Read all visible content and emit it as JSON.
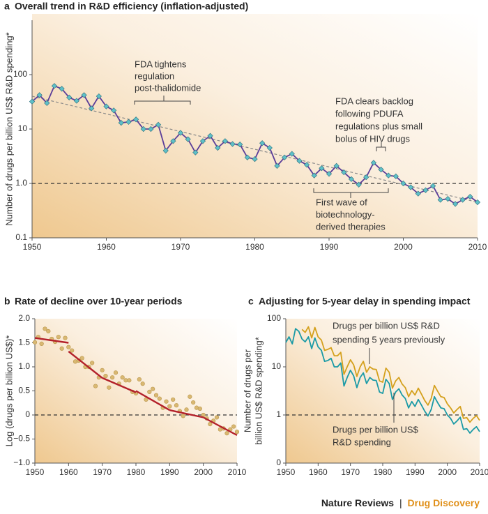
{
  "chart_data": [
    {
      "type": "line",
      "label": "a",
      "title": "Overall trend in R&D efficiency (inflation-adjusted)",
      "y_label": [
        "Number of drugs per billion US$ R&D spending*"
      ],
      "log_scale": true,
      "xlim": [
        1950,
        2010
      ],
      "xticks": [
        1950,
        1960,
        1970,
        1980,
        1990,
        2000,
        2010
      ],
      "ylim": [
        0.1,
        1000
      ],
      "yticks": [
        0.1,
        {
          "value": 1,
          "label": "1.0"
        },
        10,
        100
      ],
      "reference_line": 1,
      "trend": {
        "x": [
          1950,
          2010
        ],
        "values": [
          40,
          0.45
        ]
      },
      "x": [
        1950,
        1951,
        1952,
        1953,
        1954,
        1955,
        1956,
        1957,
        1958,
        1959,
        1960,
        1961,
        1962,
        1963,
        1964,
        1965,
        1966,
        1967,
        1968,
        1969,
        1970,
        1971,
        1972,
        1973,
        1974,
        1975,
        1976,
        1977,
        1978,
        1979,
        1980,
        1981,
        1982,
        1983,
        1984,
        1985,
        1986,
        1987,
        1988,
        1989,
        1990,
        1991,
        1992,
        1993,
        1994,
        1995,
        1996,
        1997,
        1998,
        1999,
        2000,
        2001,
        2002,
        2003,
        2004,
        2005,
        2006,
        2007,
        2008,
        2009,
        2010
      ],
      "series": [
        {
          "color": "#5a3d99",
          "marker_color": "#5fc0c8",
          "values": [
            32,
            42,
            30,
            62,
            55,
            38,
            33,
            42,
            24,
            40,
            26,
            22,
            13,
            13.5,
            15,
            10,
            10,
            12,
            4,
            6,
            8.5,
            6.5,
            3.7,
            6,
            7.5,
            4.5,
            6,
            5.3,
            5.2,
            3,
            2.8,
            5.5,
            4.5,
            2.1,
            3,
            3.5,
            2.6,
            2.2,
            1.4,
            1.9,
            1.5,
            2.1,
            1.6,
            1.2,
            0.95,
            1.3,
            2.4,
            1.8,
            1.4,
            1.35,
            1.0,
            0.85,
            0.65,
            0.75,
            0.9,
            0.5,
            0.52,
            0.42,
            0.5,
            0.57,
            0.45
          ]
        }
      ],
      "annotations": [
        {
          "lines": [
            "FDA tightens",
            "regulation",
            "post-thalidomide"
          ]
        },
        {
          "lines": [
            "FDA clears backlog",
            "following PDUFA",
            "regulations plus small",
            "bolus of HIV drugs"
          ]
        },
        {
          "lines": [
            "First wave of",
            "biotechnology-",
            "derived therapies"
          ]
        }
      ]
    },
    {
      "type": "scatter",
      "label": "b",
      "title": "Rate of decline over 10-year periods",
      "y_label": [
        "Log (drugs per billion US$)*"
      ],
      "xlim": [
        1950,
        2010
      ],
      "xticks": [
        1950,
        1960,
        1970,
        1980,
        1990,
        2000,
        2010
      ],
      "ylim": [
        -1,
        2
      ],
      "yticks": [
        {
          "value": 2,
          "label": "2.0"
        },
        1.5,
        {
          "value": 1,
          "label": "1.0"
        },
        0.5,
        0,
        {
          "value": -0.5,
          "label": "−0.5"
        },
        {
          "value": -1,
          "label": "−1.0"
        }
      ],
      "reference_line": 0,
      "color": "#d9b872",
      "segment_color": "#b3202a",
      "x": [
        1950,
        1951,
        1952,
        1953,
        1954,
        1955,
        1956,
        1957,
        1958,
        1959,
        1960,
        1961,
        1962,
        1963,
        1964,
        1965,
        1966,
        1967,
        1968,
        1969,
        1970,
        1971,
        1972,
        1973,
        1974,
        1975,
        1976,
        1977,
        1978,
        1979,
        1980,
        1981,
        1982,
        1983,
        1984,
        1985,
        1986,
        1987,
        1988,
        1989,
        1990,
        1991,
        1992,
        1993,
        1994,
        1995,
        1996,
        1997,
        1998,
        1999,
        2000,
        2001,
        2002,
        2003,
        2004,
        2005,
        2006,
        2007,
        2008,
        2009,
        2010
      ],
      "values": [
        1.51,
        1.62,
        1.48,
        1.79,
        1.74,
        1.58,
        1.52,
        1.62,
        1.38,
        1.6,
        1.41,
        1.34,
        1.11,
        1.13,
        1.18,
        1.0,
        1.0,
        1.08,
        0.6,
        0.78,
        0.93,
        0.81,
        0.57,
        0.78,
        0.88,
        0.65,
        0.78,
        0.72,
        0.72,
        0.48,
        0.45,
        0.74,
        0.65,
        0.32,
        0.48,
        0.54,
        0.41,
        0.34,
        0.15,
        0.28,
        0.18,
        0.32,
        0.2,
        0.08,
        -0.02,
        0.11,
        0.38,
        0.26,
        0.15,
        0.13,
        0,
        -0.07,
        -0.19,
        -0.12,
        -0.05,
        -0.3,
        -0.28,
        -0.38,
        -0.3,
        -0.24,
        -0.35
      ],
      "segments": [
        {
          "x": [
            1950,
            1960
          ],
          "values": [
            1.6,
            1.5
          ]
        },
        {
          "x": [
            1960,
            1970
          ],
          "values": [
            1.32,
            0.77
          ]
        },
        {
          "x": [
            1970,
            1980
          ],
          "values": [
            0.77,
            0.47
          ]
        },
        {
          "x": [
            1980,
            1990
          ],
          "values": [
            0.5,
            0.1
          ]
        },
        {
          "x": [
            1990,
            2000
          ],
          "values": [
            0.1,
            -0.05
          ]
        },
        {
          "x": [
            2000,
            2010
          ],
          "values": [
            -0.05,
            -0.42
          ]
        }
      ]
    },
    {
      "type": "line",
      "label": "c",
      "title": "Adjusting for 5-year delay in spending impact",
      "y_label": [
        "Number of drugs per",
        "billion US$ R&D spending*"
      ],
      "log_scale": true,
      "xlim": [
        1950,
        2010
      ],
      "xticks": [
        1950,
        1960,
        1970,
        1980,
        1990,
        2000,
        2010
      ],
      "ylim": [
        0.1,
        100
      ],
      "yticks": [
        {
          "value": 0.1,
          "label": "0"
        },
        1,
        10,
        100
      ],
      "reference_line": 1,
      "series": [
        {
          "name": "Drugs per billion US$ R&D spending",
          "color": "#1a9aa6",
          "x": [
            1950,
            1951,
            1952,
            1953,
            1954,
            1955,
            1956,
            1957,
            1958,
            1959,
            1960,
            1961,
            1962,
            1963,
            1964,
            1965,
            1966,
            1967,
            1968,
            1969,
            1970,
            1971,
            1972,
            1973,
            1974,
            1975,
            1976,
            1977,
            1978,
            1979,
            1980,
            1981,
            1982,
            1983,
            1984,
            1985,
            1986,
            1987,
            1988,
            1989,
            1990,
            1991,
            1992,
            1993,
            1994,
            1995,
            1996,
            1997,
            1998,
            1999,
            2000,
            2001,
            2002,
            2003,
            2004,
            2005,
            2006,
            2007,
            2008,
            2009,
            2010
          ],
          "values": [
            32,
            42,
            30,
            62,
            55,
            38,
            33,
            42,
            24,
            40,
            26,
            22,
            13,
            13.5,
            15,
            10,
            10,
            12,
            4,
            6,
            8.5,
            6.5,
            3.7,
            6,
            7.5,
            4.5,
            6,
            5.3,
            5.2,
            3,
            2.8,
            5.5,
            4.5,
            2.1,
            3,
            3.5,
            2.6,
            2.2,
            1.4,
            1.9,
            1.5,
            2.1,
            1.6,
            1.2,
            0.95,
            1.3,
            2.4,
            1.8,
            1.4,
            1.35,
            1.0,
            0.85,
            0.65,
            0.75,
            0.9,
            0.5,
            0.52,
            0.42,
            0.5,
            0.57,
            0.45
          ]
        },
        {
          "name": "Drugs per billion US$ R&D spending 5 years previously",
          "color": "#d4a01c",
          "x": [
            1955,
            1956,
            1957,
            1958,
            1959,
            1960,
            1961,
            1962,
            1963,
            1964,
            1965,
            1966,
            1967,
            1968,
            1969,
            1970,
            1971,
            1972,
            1973,
            1974,
            1975,
            1976,
            1977,
            1978,
            1979,
            1980,
            1981,
            1982,
            1983,
            1984,
            1985,
            1986,
            1987,
            1988,
            1989,
            1990,
            1991,
            1992,
            1993,
            1994,
            1995,
            1996,
            1997,
            1998,
            1999,
            2000,
            2001,
            2002,
            2003,
            2004,
            2005,
            2006,
            2007,
            2008,
            2009,
            2010
          ],
          "values": [
            60,
            52,
            68,
            40,
            66,
            42,
            36,
            22,
            23,
            25,
            17,
            17,
            20,
            7,
            10,
            14,
            11,
            6.3,
            10,
            13,
            7.7,
            10,
            9,
            8.8,
            5.1,
            4.8,
            9.4,
            7.7,
            3.6,
            5.1,
            6,
            4.4,
            3.7,
            2.4,
            3.2,
            2.6,
            3.6,
            2.7,
            2,
            1.6,
            2.2,
            4.1,
            3.1,
            2.4,
            2.3,
            1.7,
            1.4,
            1.1,
            1.3,
            1.5,
            0.85,
            0.88,
            0.71,
            0.85,
            0.97,
            0.77
          ]
        }
      ],
      "annotations": [
        {
          "lines": [
            "Drugs per billion US$ R&D",
            "spending 5 years previously"
          ]
        },
        {
          "lines": [
            "Drugs per billion US$",
            "R&D spending"
          ]
        }
      ]
    }
  ],
  "footer": {
    "journal": "Nature Reviews",
    "separator": "|",
    "section": "Drug Discovery"
  }
}
